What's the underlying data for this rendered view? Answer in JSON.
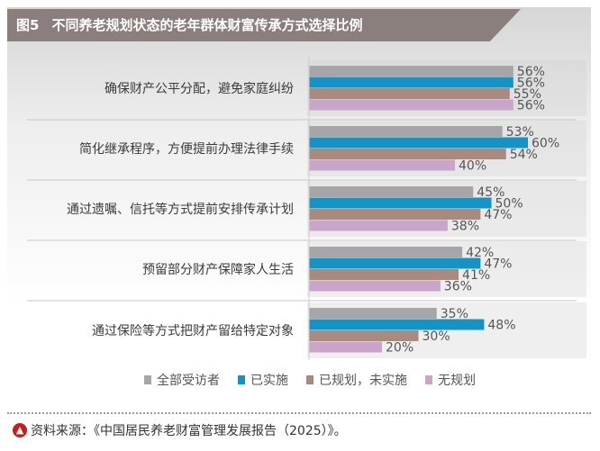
{
  "figure": {
    "number": "图5",
    "title": "不同养老规划状态的老年群体财富传承方式选择比例"
  },
  "colors": {
    "title_bar": "#8a7f7c",
    "series": [
      "#a6a6a9",
      "#1593c4",
      "#a88a7e",
      "#c9a5c9"
    ],
    "source_icon": "#c61d1d"
  },
  "source": {
    "icon": "up-arrow-circle-icon",
    "text": "资料来源：《中国居民养老财富管理发展报告（2025）》。"
  },
  "chart_data": {
    "type": "bar",
    "orientation": "horizontal",
    "title": "不同养老规划状态的老年群体财富传承方式选择比例",
    "categories": [
      "确保财产公平分配，避免家庭纠纷",
      "简化继承程序，方便提前办理法律手续",
      "通过遗嘱、信托等方式提前安排传承计划",
      "预留部分财产保障家人生活",
      "通过保险等方式把财产留给特定对象"
    ],
    "series": [
      {
        "name": "全部受访者",
        "values": [
          56,
          53,
          45,
          42,
          35
        ]
      },
      {
        "name": "已实施",
        "values": [
          56,
          60,
          50,
          47,
          48
        ]
      },
      {
        "name": "已规划，未实施",
        "values": [
          55,
          54,
          47,
          41,
          30
        ]
      },
      {
        "name": "无规划",
        "values": [
          56,
          40,
          38,
          36,
          20
        ]
      }
    ],
    "value_suffix": "%",
    "xlim": [
      0,
      60
    ],
    "legend_position": "bottom",
    "grid": false
  }
}
